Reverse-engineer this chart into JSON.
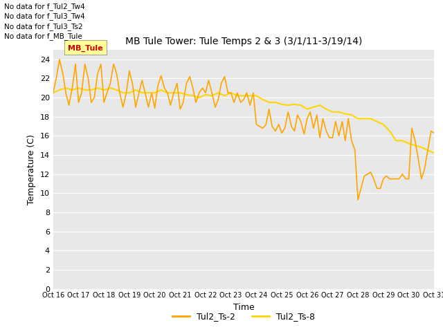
{
  "title": "MB Tule Tower: Tule Temps 2 & 3 (3/1/11-3/19/14)",
  "xlabel": "Time",
  "ylabel": "Temperature (C)",
  "plot_bg": "#e8e8e8",
  "fig_bg": "#ffffff",
  "ylim": [
    0,
    25
  ],
  "yticks": [
    0,
    2,
    4,
    6,
    8,
    10,
    12,
    14,
    16,
    18,
    20,
    22,
    24
  ],
  "xtick_labels": [
    "Oct 16",
    "Oct 17",
    "Oct 18",
    "Oct 19",
    "Oct 20",
    "Oct 21",
    "Oct 22",
    "Oct 23",
    "Oct 24",
    "Oct 25",
    "Oct 26",
    "Oct 27",
    "Oct 28",
    "Oct 29",
    "Oct 30",
    "Oct 31"
  ],
  "legend_texts": [
    "No data for f_Tul2_Tw4",
    "No data for f_Tul3_Tw4",
    "No data for f_Tul3_Ts2",
    "No data for f_MB_Tule"
  ],
  "legend_label1": "Tul2_Ts-2",
  "legend_label2": "Tul2_Ts-8",
  "color_orange": "#FFA500",
  "color_yellow": "#FFD700",
  "annotation_text": "MB_Tule",
  "annotation_bg": "#ffff99",
  "annotation_color": "#cc0000",
  "ts2_x": [
    0.0,
    0.12,
    0.25,
    0.38,
    0.5,
    0.62,
    0.75,
    0.88,
    1.0,
    1.12,
    1.25,
    1.38,
    1.5,
    1.62,
    1.75,
    1.88,
    2.0,
    2.12,
    2.25,
    2.38,
    2.5,
    2.62,
    2.75,
    2.88,
    3.0,
    3.12,
    3.25,
    3.38,
    3.5,
    3.62,
    3.75,
    3.88,
    4.0,
    4.12,
    4.25,
    4.38,
    4.5,
    4.62,
    4.75,
    4.88,
    5.0,
    5.12,
    5.25,
    5.38,
    5.5,
    5.62,
    5.75,
    5.88,
    6.0,
    6.12,
    6.25,
    6.38,
    6.5,
    6.62,
    6.75,
    6.88,
    7.0,
    7.12,
    7.25,
    7.38,
    7.5,
    7.62,
    7.75,
    7.88,
    8.0,
    8.12,
    8.25,
    8.38,
    8.5,
    8.62,
    8.75,
    8.88,
    9.0,
    9.12,
    9.25,
    9.38,
    9.5,
    9.62,
    9.75,
    9.88,
    10.0,
    10.12,
    10.25,
    10.38,
    10.5,
    10.62,
    10.75,
    10.88,
    11.0,
    11.12,
    11.25,
    11.38,
    11.5,
    11.62,
    11.75,
    11.88,
    12.0,
    12.12,
    12.25,
    12.38,
    12.5,
    12.62,
    12.75,
    12.88,
    13.0,
    13.12,
    13.25,
    13.38,
    13.5,
    13.62,
    13.75,
    13.88,
    14.0,
    14.12,
    14.25,
    14.38,
    14.5,
    14.62,
    14.75,
    14.88,
    15.0
  ],
  "ts2_y": [
    20.5,
    22.0,
    24.0,
    22.5,
    20.5,
    19.2,
    21.0,
    23.5,
    19.5,
    20.5,
    23.5,
    22.0,
    19.5,
    20.0,
    22.5,
    23.5,
    19.5,
    20.5,
    21.5,
    23.5,
    22.5,
    20.5,
    19.0,
    20.5,
    22.8,
    21.5,
    19.0,
    20.5,
    21.8,
    20.5,
    19.0,
    20.5,
    18.9,
    21.2,
    22.3,
    21.0,
    20.5,
    19.2,
    20.5,
    21.5,
    18.8,
    19.5,
    21.5,
    22.2,
    21.0,
    19.5,
    20.5,
    21.0,
    20.5,
    21.8,
    20.5,
    19.0,
    19.8,
    21.5,
    22.2,
    20.5,
    20.5,
    19.5,
    20.5,
    19.5,
    19.8,
    20.5,
    19.2,
    20.5,
    17.2,
    17.0,
    16.8,
    17.2,
    18.8,
    17.0,
    16.5,
    17.2,
    16.3,
    16.8,
    18.5,
    17.0,
    16.5,
    18.2,
    17.5,
    16.2,
    17.8,
    18.5,
    16.8,
    18.2,
    15.8,
    17.8,
    16.5,
    15.8,
    15.8,
    17.5,
    16.0,
    17.5,
    15.5,
    17.8,
    15.5,
    14.5,
    9.3,
    10.5,
    11.8,
    12.0,
    12.2,
    11.5,
    10.5,
    10.5,
    11.5,
    11.8,
    11.5,
    11.5,
    11.5,
    11.5,
    12.0,
    11.5,
    11.5,
    16.8,
    15.5,
    13.5,
    11.5,
    12.5,
    14.5,
    16.5,
    16.3
  ],
  "ts8_x": [
    0.0,
    0.25,
    0.5,
    0.75,
    1.0,
    1.25,
    1.5,
    1.75,
    2.0,
    2.25,
    2.5,
    2.75,
    3.0,
    3.25,
    3.5,
    3.75,
    4.0,
    4.25,
    4.5,
    4.75,
    5.0,
    5.25,
    5.5,
    5.75,
    6.0,
    6.25,
    6.5,
    6.75,
    7.0,
    7.25,
    7.5,
    7.75,
    8.0,
    8.25,
    8.5,
    8.75,
    9.0,
    9.25,
    9.5,
    9.75,
    10.0,
    10.25,
    10.5,
    10.75,
    11.0,
    11.25,
    11.5,
    11.75,
    12.0,
    12.25,
    12.5,
    12.75,
    13.0,
    13.25,
    13.5,
    13.75,
    14.0,
    14.25,
    14.5,
    14.75,
    15.0
  ],
  "ts8_y": [
    20.5,
    20.8,
    21.0,
    20.8,
    21.0,
    20.8,
    20.8,
    21.0,
    20.8,
    21.0,
    20.8,
    20.5,
    20.5,
    20.8,
    20.5,
    20.5,
    20.5,
    20.8,
    20.5,
    20.5,
    20.5,
    20.3,
    20.2,
    20.0,
    20.3,
    20.2,
    20.5,
    20.2,
    20.5,
    20.2,
    20.2,
    20.2,
    20.2,
    19.8,
    19.5,
    19.5,
    19.3,
    19.2,
    19.3,
    19.2,
    18.8,
    19.0,
    19.2,
    18.8,
    18.5,
    18.5,
    18.3,
    18.2,
    17.8,
    17.8,
    17.8,
    17.5,
    17.2,
    16.5,
    15.5,
    15.5,
    15.2,
    15.0,
    14.8,
    14.5,
    14.2
  ]
}
